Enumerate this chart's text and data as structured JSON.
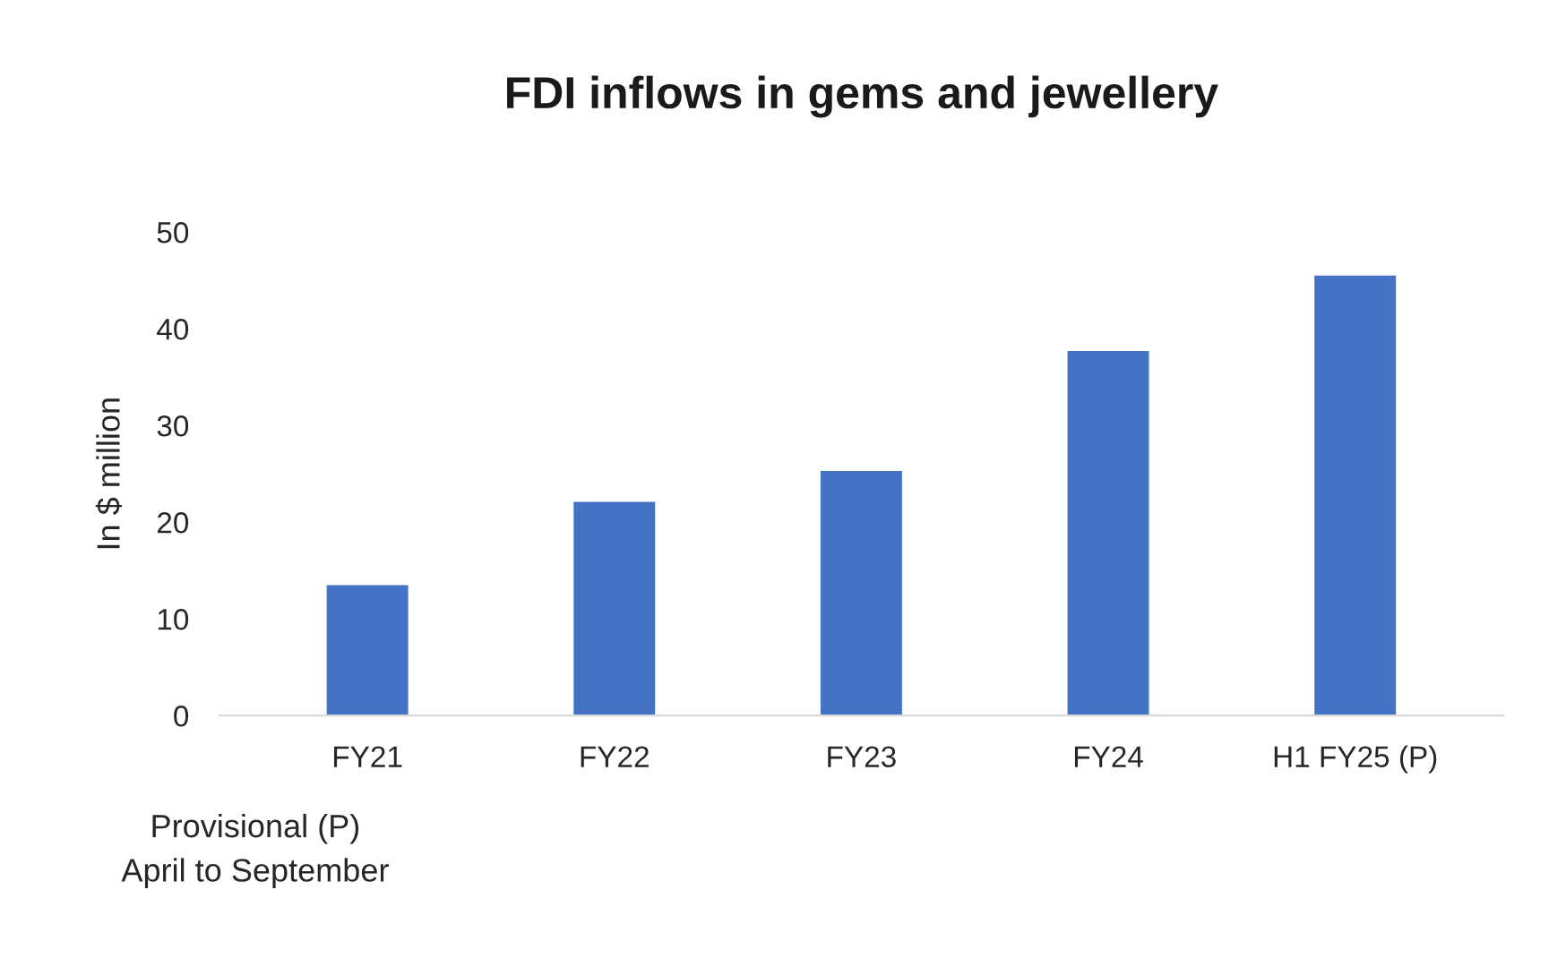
{
  "chart_data": {
    "type": "bar",
    "title": "FDI inflows in gems and jewellery",
    "ylabel": "In $ million",
    "categories": [
      "FY21",
      "FY22",
      "FY23",
      "FY24",
      "H1 FY25 (P)"
    ],
    "values": [
      13.5,
      22.1,
      25.3,
      37.7,
      45.5
    ],
    "color": "#4472c4",
    "ylim": [
      0,
      50
    ],
    "yticks": [
      0,
      10,
      20,
      30,
      40,
      50
    ],
    "grid": false,
    "legend": false,
    "annotations": [
      "Provisional (P)\nApril to September"
    ]
  }
}
